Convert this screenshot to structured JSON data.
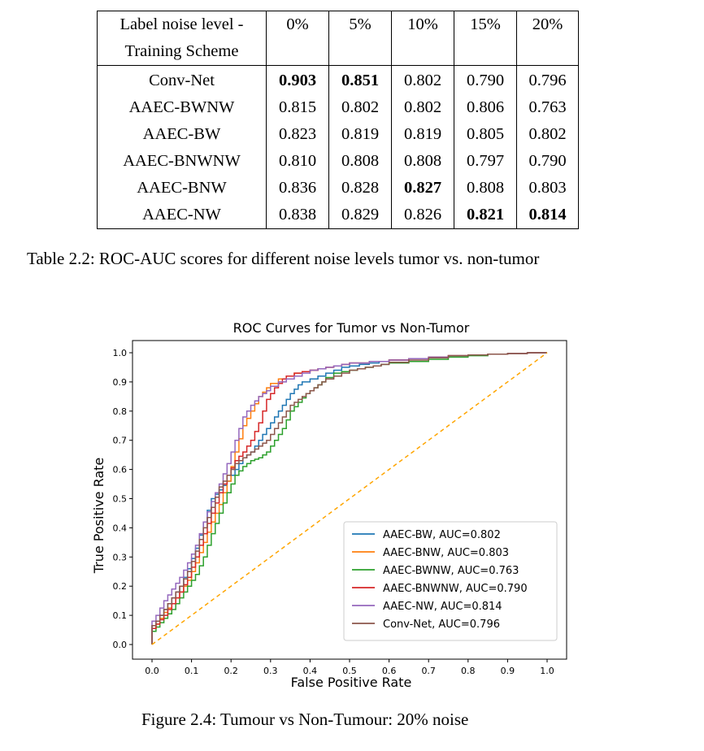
{
  "table": {
    "header_line1": [
      "Label noise level -",
      "0%",
      "5%",
      "10%",
      "15%",
      "20%"
    ],
    "header_line2": "Training Scheme",
    "rows": [
      {
        "name": "Conv-Net",
        "values": [
          "0.903",
          "0.851",
          "0.802",
          "0.790",
          "0.796"
        ],
        "bold": [
          true,
          true,
          false,
          false,
          false
        ]
      },
      {
        "name": "AAEC-BWNW",
        "values": [
          "0.815",
          "0.802",
          "0.802",
          "0.806",
          "0.763"
        ],
        "bold": [
          false,
          false,
          false,
          false,
          false
        ]
      },
      {
        "name": "AAEC-BW",
        "values": [
          "0.823",
          "0.819",
          "0.819",
          "0.805",
          "0.802"
        ],
        "bold": [
          false,
          false,
          false,
          false,
          false
        ]
      },
      {
        "name": "AAEC-BNWNW",
        "values": [
          "0.810",
          "0.808",
          "0.808",
          "0.797",
          "0.790"
        ],
        "bold": [
          false,
          false,
          false,
          false,
          false
        ]
      },
      {
        "name": "AAEC-BNW",
        "values": [
          "0.836",
          "0.828",
          "0.827",
          "0.808",
          "0.803"
        ],
        "bold": [
          false,
          false,
          true,
          false,
          false
        ]
      },
      {
        "name": "AAEC-NW",
        "values": [
          "0.838",
          "0.829",
          "0.826",
          "0.821",
          "0.814"
        ],
        "bold": [
          false,
          false,
          false,
          true,
          true
        ]
      }
    ]
  },
  "table_caption": "Table 2.2: ROC-AUC scores for different noise levels tumor vs. non-tumor",
  "figure_caption": "Figure 2.4: Tumour vs Non-Tumour: 20% noise",
  "chart_data": {
    "type": "line",
    "title": "ROC Curves for Tumor vs Non-Tumor",
    "xlabel": "False Positive Rate",
    "ylabel": "True Positive Rate",
    "xlim": [
      0.0,
      1.0
    ],
    "ylim": [
      0.0,
      1.0
    ],
    "xticks": [
      "0.0",
      "0.1",
      "0.2",
      "0.3",
      "0.4",
      "0.5",
      "0.6",
      "0.7",
      "0.8",
      "0.9",
      "1.0"
    ],
    "yticks": [
      "0.0",
      "0.1",
      "0.2",
      "0.3",
      "0.4",
      "0.5",
      "0.6",
      "0.7",
      "0.8",
      "0.9",
      "1.0"
    ],
    "legend_position": "lower-right",
    "series": [
      {
        "name": "AAEC-BW, AUC=0.802",
        "color": "#1f77b4",
        "points": [
          [
            0,
            0
          ],
          [
            0,
            0.05
          ],
          [
            0.02,
            0.08
          ],
          [
            0.04,
            0.12
          ],
          [
            0.06,
            0.16
          ],
          [
            0.08,
            0.2
          ],
          [
            0.1,
            0.26
          ],
          [
            0.12,
            0.33
          ],
          [
            0.14,
            0.42
          ],
          [
            0.16,
            0.5
          ],
          [
            0.18,
            0.53
          ],
          [
            0.2,
            0.56
          ],
          [
            0.22,
            0.6
          ],
          [
            0.24,
            0.64
          ],
          [
            0.26,
            0.66
          ],
          [
            0.28,
            0.7
          ],
          [
            0.3,
            0.74
          ],
          [
            0.32,
            0.78
          ],
          [
            0.34,
            0.82
          ],
          [
            0.36,
            0.86
          ],
          [
            0.38,
            0.89
          ],
          [
            0.42,
            0.91
          ],
          [
            0.46,
            0.93
          ],
          [
            0.5,
            0.95
          ],
          [
            0.55,
            0.96
          ],
          [
            0.6,
            0.97
          ],
          [
            0.7,
            0.98
          ],
          [
            0.8,
            0.99
          ],
          [
            0.9,
            0.995
          ],
          [
            1,
            1
          ]
        ]
      },
      {
        "name": "AAEC-BNW, AUC=0.803",
        "color": "#ff7f0e",
        "points": [
          [
            0,
            0
          ],
          [
            0,
            0.04
          ],
          [
            0.02,
            0.07
          ],
          [
            0.04,
            0.11
          ],
          [
            0.06,
            0.14
          ],
          [
            0.08,
            0.18
          ],
          [
            0.1,
            0.22
          ],
          [
            0.12,
            0.28
          ],
          [
            0.14,
            0.35
          ],
          [
            0.16,
            0.42
          ],
          [
            0.18,
            0.48
          ],
          [
            0.2,
            0.56
          ],
          [
            0.22,
            0.66
          ],
          [
            0.24,
            0.75
          ],
          [
            0.26,
            0.8
          ],
          [
            0.28,
            0.85
          ],
          [
            0.3,
            0.88
          ],
          [
            0.34,
            0.91
          ],
          [
            0.38,
            0.93
          ],
          [
            0.42,
            0.94
          ],
          [
            0.46,
            0.95
          ],
          [
            0.5,
            0.96
          ],
          [
            0.6,
            0.97
          ],
          [
            0.7,
            0.98
          ],
          [
            0.8,
            0.99
          ],
          [
            0.9,
            0.995
          ],
          [
            1,
            1
          ]
        ]
      },
      {
        "name": "AAEC-BWNW, AUC=0.763",
        "color": "#2ca02c",
        "points": [
          [
            0,
            0
          ],
          [
            0,
            0.03
          ],
          [
            0.02,
            0.06
          ],
          [
            0.04,
            0.09
          ],
          [
            0.06,
            0.12
          ],
          [
            0.08,
            0.16
          ],
          [
            0.1,
            0.2
          ],
          [
            0.12,
            0.24
          ],
          [
            0.14,
            0.3
          ],
          [
            0.16,
            0.38
          ],
          [
            0.18,
            0.45
          ],
          [
            0.2,
            0.52
          ],
          [
            0.22,
            0.58
          ],
          [
            0.24,
            0.61
          ],
          [
            0.26,
            0.63
          ],
          [
            0.28,
            0.64
          ],
          [
            0.3,
            0.66
          ],
          [
            0.32,
            0.7
          ],
          [
            0.34,
            0.74
          ],
          [
            0.36,
            0.8
          ],
          [
            0.38,
            0.83
          ],
          [
            0.4,
            0.86
          ],
          [
            0.42,
            0.88
          ],
          [
            0.44,
            0.9
          ],
          [
            0.48,
            0.93
          ],
          [
            0.52,
            0.94
          ],
          [
            0.56,
            0.95
          ],
          [
            0.6,
            0.96
          ],
          [
            0.7,
            0.97
          ],
          [
            0.8,
            0.985
          ],
          [
            0.9,
            0.995
          ],
          [
            1,
            1
          ]
        ]
      },
      {
        "name": "AAEC-BNWNW, AUC=0.790",
        "color": "#d62728",
        "points": [
          [
            0,
            0
          ],
          [
            0,
            0.04
          ],
          [
            0.02,
            0.07
          ],
          [
            0.04,
            0.1
          ],
          [
            0.06,
            0.14
          ],
          [
            0.08,
            0.18
          ],
          [
            0.1,
            0.23
          ],
          [
            0.12,
            0.3
          ],
          [
            0.14,
            0.38
          ],
          [
            0.16,
            0.45
          ],
          [
            0.18,
            0.52
          ],
          [
            0.2,
            0.58
          ],
          [
            0.22,
            0.63
          ],
          [
            0.24,
            0.66
          ],
          [
            0.26,
            0.7
          ],
          [
            0.28,
            0.76
          ],
          [
            0.3,
            0.84
          ],
          [
            0.32,
            0.88
          ],
          [
            0.34,
            0.91
          ],
          [
            0.38,
            0.93
          ],
          [
            0.42,
            0.94
          ],
          [
            0.46,
            0.95
          ],
          [
            0.5,
            0.96
          ],
          [
            0.6,
            0.97
          ],
          [
            0.7,
            0.98
          ],
          [
            0.8,
            0.99
          ],
          [
            0.9,
            0.995
          ],
          [
            1,
            1
          ]
        ]
      },
      {
        "name": "AAEC-NW, AUC=0.814",
        "color": "#9467bd",
        "points": [
          [
            0,
            0
          ],
          [
            0,
            0.06
          ],
          [
            0.02,
            0.1
          ],
          [
            0.04,
            0.15
          ],
          [
            0.06,
            0.19
          ],
          [
            0.08,
            0.23
          ],
          [
            0.1,
            0.28
          ],
          [
            0.12,
            0.34
          ],
          [
            0.14,
            0.42
          ],
          [
            0.16,
            0.49
          ],
          [
            0.18,
            0.55
          ],
          [
            0.2,
            0.62
          ],
          [
            0.22,
            0.7
          ],
          [
            0.24,
            0.78
          ],
          [
            0.26,
            0.82
          ],
          [
            0.28,
            0.85
          ],
          [
            0.3,
            0.87
          ],
          [
            0.34,
            0.9
          ],
          [
            0.38,
            0.92
          ],
          [
            0.42,
            0.94
          ],
          [
            0.46,
            0.95
          ],
          [
            0.5,
            0.96
          ],
          [
            0.6,
            0.97
          ],
          [
            0.7,
            0.98
          ],
          [
            0.8,
            0.99
          ],
          [
            0.9,
            0.995
          ],
          [
            1,
            1
          ]
        ]
      },
      {
        "name": "Conv-Net, AUC=0.796",
        "color": "#8c564b",
        "points": [
          [
            0,
            0
          ],
          [
            0,
            0.05
          ],
          [
            0.02,
            0.08
          ],
          [
            0.04,
            0.12
          ],
          [
            0.06,
            0.16
          ],
          [
            0.08,
            0.2
          ],
          [
            0.1,
            0.25
          ],
          [
            0.12,
            0.32
          ],
          [
            0.14,
            0.4
          ],
          [
            0.16,
            0.47
          ],
          [
            0.18,
            0.54
          ],
          [
            0.2,
            0.58
          ],
          [
            0.22,
            0.62
          ],
          [
            0.24,
            0.64
          ],
          [
            0.26,
            0.66
          ],
          [
            0.28,
            0.68
          ],
          [
            0.3,
            0.7
          ],
          [
            0.32,
            0.74
          ],
          [
            0.34,
            0.78
          ],
          [
            0.36,
            0.82
          ],
          [
            0.38,
            0.84
          ],
          [
            0.4,
            0.86
          ],
          [
            0.42,
            0.88
          ],
          [
            0.44,
            0.9
          ],
          [
            0.48,
            0.92
          ],
          [
            0.52,
            0.94
          ],
          [
            0.56,
            0.95
          ],
          [
            0.6,
            0.96
          ],
          [
            0.7,
            0.975
          ],
          [
            0.8,
            0.99
          ],
          [
            0.9,
            0.995
          ],
          [
            1,
            1
          ]
        ]
      },
      {
        "name": "",
        "color": "#ffa500",
        "dashed": true,
        "points": [
          [
            0,
            0
          ],
          [
            1,
            1
          ]
        ]
      }
    ]
  }
}
